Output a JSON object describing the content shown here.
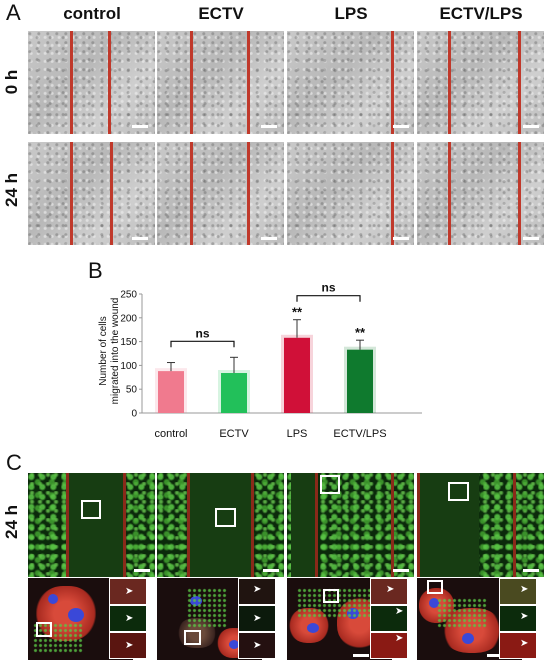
{
  "panelA": {
    "letter": "A",
    "columns": [
      "control",
      "ECTV",
      "LPS",
      "ECTV/LPS"
    ],
    "rows": [
      "0 h",
      "24 h"
    ]
  },
  "panelB": {
    "letter": "B"
  },
  "chart_data": {
    "type": "bar",
    "categories": [
      "control",
      "ECTV",
      "LPS",
      "ECTV/LPS"
    ],
    "values": [
      88,
      84,
      158,
      133
    ],
    "errors": [
      18,
      33,
      38,
      20
    ],
    "colors": [
      "#f07a8e",
      "#22c05a",
      "#d01038",
      "#0f7a2e"
    ],
    "ylabel": "Number of cells migrated into the wound",
    "ylim": [
      0,
      250
    ],
    "yticks": [
      0,
      50,
      100,
      150,
      200,
      250
    ],
    "significance": [
      "",
      "",
      "**",
      "**"
    ],
    "brackets": [
      {
        "from": 0,
        "to": 1,
        "label": "ns"
      },
      {
        "from": 2,
        "to": 3,
        "label": "ns"
      }
    ],
    "grid": false
  },
  "panelC": {
    "letter": "C",
    "row_label": "24 h"
  }
}
